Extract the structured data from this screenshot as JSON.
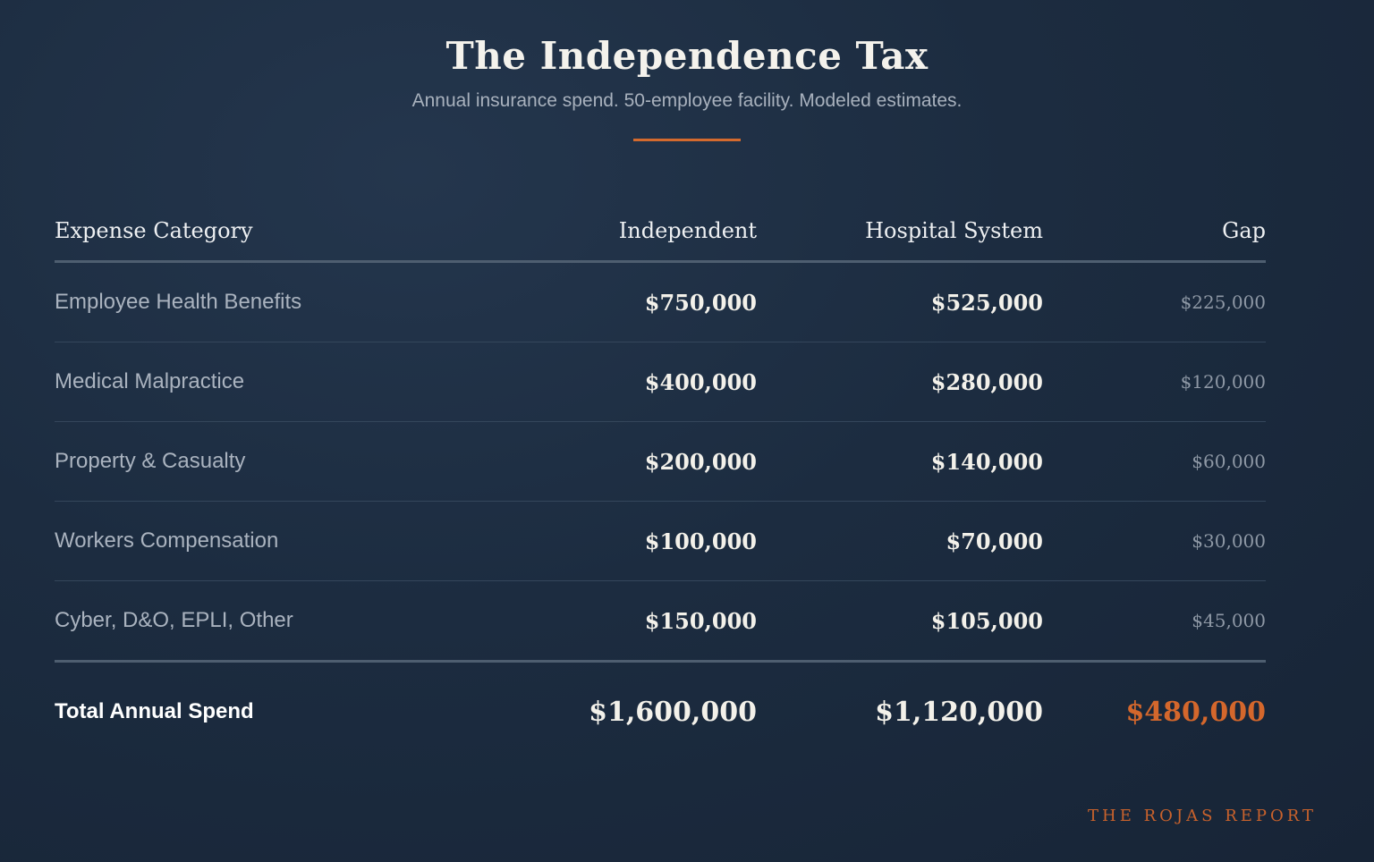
{
  "header": {
    "title": "The Independence Tax",
    "subtitle": "Annual insurance spend. 50-employee facility. Modeled estimates."
  },
  "colors": {
    "accent": "#d46a2e",
    "background": "#1c2c40"
  },
  "chart_data": {
    "type": "table",
    "columns": [
      "Expense Category",
      "Independent",
      "Hospital System",
      "Gap"
    ],
    "rows": [
      {
        "category": "Employee Health Benefits",
        "independent": "$750,000",
        "hospital": "$525,000",
        "gap": "$225,000"
      },
      {
        "category": "Medical Malpractice",
        "independent": "$400,000",
        "hospital": "$280,000",
        "gap": "$120,000"
      },
      {
        "category": "Property & Casualty",
        "independent": "$200,000",
        "hospital": "$140,000",
        "gap": "$60,000"
      },
      {
        "category": "Workers Compensation",
        "independent": "$100,000",
        "hospital": "$70,000",
        "gap": "$30,000"
      },
      {
        "category": "Cyber, D&O, EPLI, Other",
        "independent": "$150,000",
        "hospital": "$105,000",
        "gap": "$45,000"
      }
    ],
    "total": {
      "category": "Total Annual Spend",
      "independent": "$1,600,000",
      "hospital": "$1,120,000",
      "gap": "$480,000"
    }
  },
  "footer": {
    "brand": "THE ROJAS REPORT"
  }
}
